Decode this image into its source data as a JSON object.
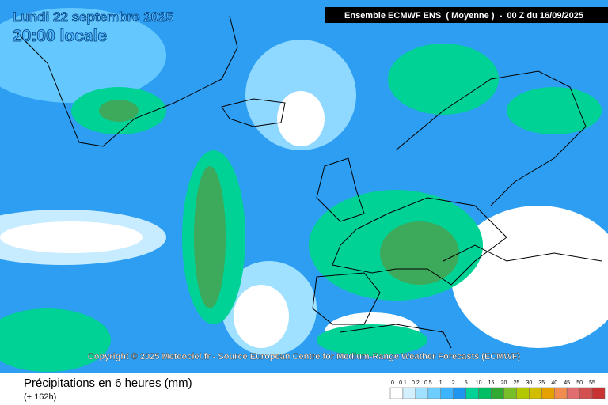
{
  "header": {
    "date": "Lundi 22 septembre 2025",
    "time": "20:00 locale",
    "model": "Ensemble ECMWF ENS  ( Moyenne )  -  00 Z du 16/09/2025"
  },
  "copyright": "Copyright © 2025 Meteociel.fr - Source European Centre for Medium-Range Weather Forecasts (ECMWF)",
  "footer": {
    "title": "Précipitations en 6 heures (mm)",
    "lead": "(+ 162h)"
  },
  "legend": {
    "ticks": [
      0,
      0.1,
      0.2,
      0.5,
      1,
      2,
      5,
      10,
      15,
      20,
      25,
      30,
      35,
      40,
      45,
      50,
      55
    ],
    "colors": [
      "#ffffff",
      "#d2f0ff",
      "#a0e1ff",
      "#6ecdff",
      "#3cb4ff",
      "#1e96f0",
      "#00d296",
      "#00be64",
      "#32aa32",
      "#78be28",
      "#b4c800",
      "#d2be00",
      "#e6a000",
      "#f08c50",
      "#e06e6e",
      "#d25050",
      "#c83232"
    ]
  }
}
